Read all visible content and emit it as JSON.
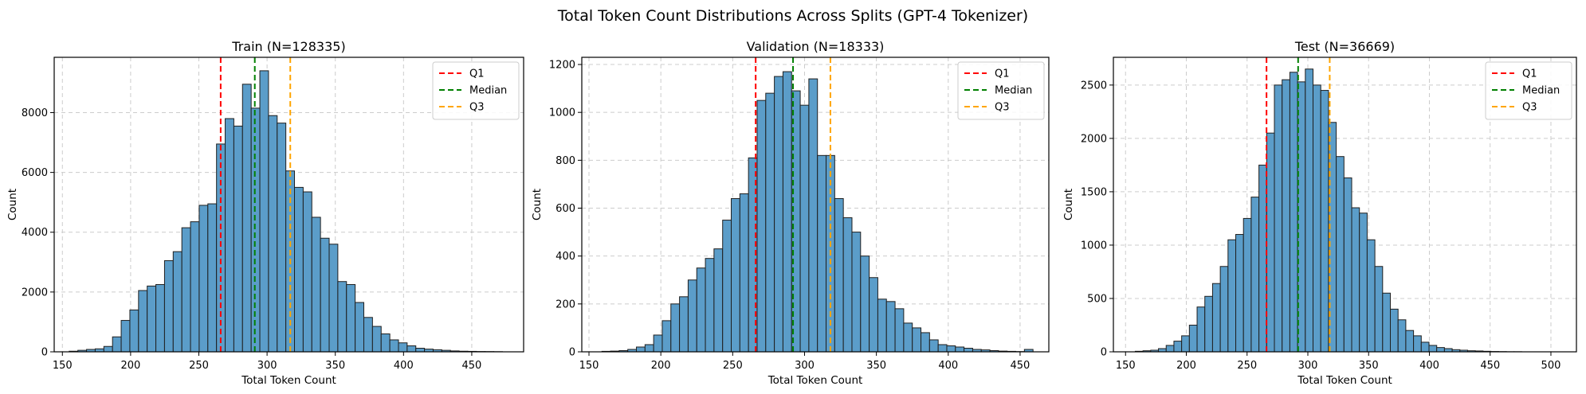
{
  "suptitle": "Total Token Count Distributions Across Splits (GPT-4 Tokenizer)",
  "colors": {
    "bar": "#5b9dc9",
    "edge": "#1f1f1f",
    "q1": "#ff0000",
    "median": "#008000",
    "q3": "#ffa500",
    "grid": "#cccccc"
  },
  "chart_data": [
    {
      "type": "bar",
      "title": "Train (N=128335)",
      "xlabel": "Total Token Count",
      "ylabel": "Count",
      "xlim": [
        144,
        488
      ],
      "ylim": [
        0,
        9850
      ],
      "xticks": [
        150,
        200,
        250,
        300,
        350,
        400,
        450
      ],
      "yticks": [
        0,
        2000,
        4000,
        6000,
        8000
      ],
      "grid": true,
      "legend": "top-right",
      "bin_start": 155,
      "bin_width": 6.35,
      "values": [
        20,
        50,
        80,
        100,
        180,
        500,
        1050,
        1400,
        2050,
        2200,
        2250,
        3050,
        3350,
        4150,
        4350,
        4900,
        4950,
        6950,
        7800,
        7550,
        8950,
        8150,
        9400,
        7900,
        7650,
        6050,
        5500,
        5350,
        4500,
        3800,
        3600,
        2350,
        2250,
        1650,
        1150,
        850,
        600,
        400,
        300,
        200,
        120,
        90,
        70,
        50,
        30,
        20,
        15,
        10,
        8,
        5
      ],
      "lines": [
        {
          "name": "Q1",
          "x": 266
        },
        {
          "name": "Median",
          "x": 291
        },
        {
          "name": "Q3",
          "x": 317
        }
      ]
    },
    {
      "type": "bar",
      "title": "Validation (N=18333)",
      "xlabel": "Total Token Count",
      "ylabel": "Count",
      "xlim": [
        145,
        470
      ],
      "ylim": [
        0,
        1230
      ],
      "xticks": [
        150,
        200,
        250,
        300,
        350,
        400,
        450
      ],
      "yticks": [
        0,
        200,
        400,
        600,
        800,
        1000,
        1200
      ],
      "grid": true,
      "legend": "top-right",
      "bin_start": 159,
      "bin_width": 6.0,
      "values": [
        2,
        3,
        5,
        10,
        20,
        30,
        70,
        130,
        200,
        230,
        300,
        350,
        390,
        430,
        550,
        640,
        660,
        810,
        1050,
        1080,
        1150,
        1170,
        1090,
        1030,
        1140,
        820,
        820,
        640,
        560,
        500,
        400,
        310,
        220,
        210,
        180,
        120,
        100,
        80,
        50,
        30,
        25,
        20,
        15,
        10,
        8,
        5,
        3,
        2,
        1,
        10
      ],
      "lines": [
        {
          "name": "Q1",
          "x": 266
        },
        {
          "name": "Median",
          "x": 292
        },
        {
          "name": "Q3",
          "x": 318
        }
      ]
    },
    {
      "type": "bar",
      "title": "Test (N=36669)",
      "xlabel": "Total Token Count",
      "ylabel": "Count",
      "xlim": [
        140,
        521
      ],
      "ylim": [
        0,
        2760
      ],
      "xticks": [
        150,
        200,
        250,
        300,
        350,
        400,
        450,
        500
      ],
      "yticks": [
        0,
        500,
        1000,
        1500,
        2000,
        2500
      ],
      "grid": true,
      "legend": "top-right",
      "bin_start": 158,
      "bin_width": 6.36,
      "values": [
        5,
        10,
        15,
        30,
        60,
        100,
        150,
        250,
        420,
        520,
        640,
        800,
        1050,
        1100,
        1250,
        1450,
        1750,
        2050,
        2500,
        2550,
        2620,
        2530,
        2650,
        2500,
        2450,
        2150,
        1830,
        1630,
        1350,
        1300,
        1050,
        800,
        550,
        400,
        300,
        200,
        150,
        90,
        60,
        40,
        30,
        20,
        15,
        10,
        8,
        5,
        3,
        2,
        1,
        1
      ],
      "lines": [
        {
          "name": "Q1",
          "x": 266
        },
        {
          "name": "Median",
          "x": 292
        },
        {
          "name": "Q3",
          "x": 318
        }
      ]
    }
  ]
}
